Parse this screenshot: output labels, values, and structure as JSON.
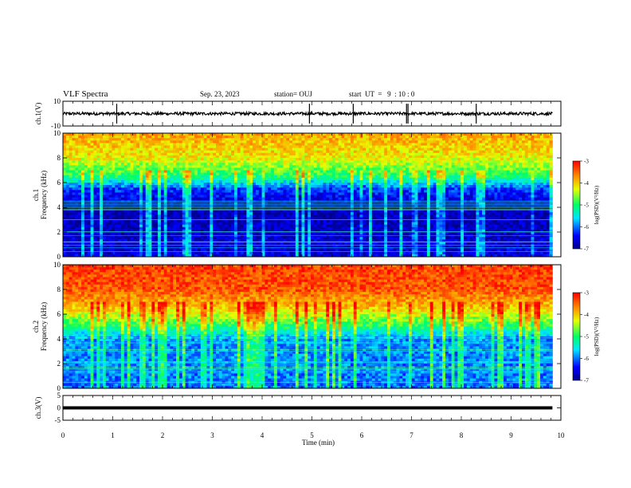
{
  "header": {
    "title": "VLF Spectra",
    "date": "Sep. 23, 2023",
    "station": "station= OUJ",
    "start": "start  UT  =   9  : 10 : 0"
  },
  "chart_data": [
    {
      "type": "line",
      "panel": "ch1-waveform",
      "ylabel": "ch.1(V)",
      "ylim": [
        -10,
        10
      ],
      "yticks": [
        "10",
        "-10"
      ],
      "xlim": [
        0,
        10
      ],
      "series": [
        {
          "color": "#000000",
          "baseline": 0,
          "noise_amplitude": 1.2,
          "spikes_min": [
            1.08,
            4.95,
            5.83,
            6.9,
            6.93,
            8.3
          ]
        }
      ]
    },
    {
      "type": "heatmap",
      "panel": "ch1-spectrogram",
      "ylabel": "ch.1\nFrequency (kHz)",
      "ylabel_line1": "ch.1",
      "ylabel_line2": "Frequency (kHz)",
      "ylim": [
        0,
        10
      ],
      "yticks": [
        "0",
        "2",
        "4",
        "6",
        "8",
        "10"
      ],
      "xlim": [
        0,
        10
      ],
      "colorbar": {
        "label": "log(PSD)(V²/Hz)",
        "range": [
          -7,
          -3
        ],
        "ticks": [
          "-3",
          "-4",
          "-5",
          "-6",
          "-7"
        ]
      },
      "profile_by_frequency_khz": [
        [
          0,
          -6.6
        ],
        [
          4,
          -6.8
        ],
        [
          5.5,
          -6.2
        ],
        [
          6.5,
          -5.0
        ],
        [
          8,
          -4.2
        ],
        [
          10,
          -3.8
        ]
      ]
    },
    {
      "type": "heatmap",
      "panel": "ch2-spectrogram",
      "ylabel": "ch.2\nFrequency (kHz)",
      "ylabel_line1": "ch.2",
      "ylabel_line2": "Frequency (kHz)",
      "ylim": [
        0,
        10
      ],
      "yticks": [
        "0",
        "2",
        "4",
        "6",
        "8",
        "10"
      ],
      "xlim": [
        0,
        10
      ],
      "colorbar": {
        "label": "log(PSD)(V²/Hz)",
        "range": [
          -7,
          -3
        ],
        "ticks": [
          "-3",
          "-4",
          "-5",
          "-6",
          "-7"
        ]
      },
      "profile_by_frequency_khz": [
        [
          0,
          -6.0
        ],
        [
          4,
          -5.9
        ],
        [
          5,
          -5.0
        ],
        [
          6.5,
          -4.0
        ],
        [
          8,
          -3.4
        ],
        [
          10,
          -3.3
        ]
      ]
    },
    {
      "type": "line",
      "panel": "ch3-waveform",
      "ylabel": "ch.3(V)",
      "ylim": [
        -5,
        5
      ],
      "yticks": [
        "5",
        "0",
        "-5"
      ],
      "xlim": [
        0,
        10
      ],
      "xlabel": "Time (min)",
      "xticks": [
        "0",
        "1",
        "2",
        "3",
        "4",
        "5",
        "6",
        "7",
        "8",
        "9",
        "10"
      ],
      "series": [
        {
          "color": "#000000",
          "baseline": 0,
          "noise_amplitude": 0.0
        }
      ]
    }
  ]
}
